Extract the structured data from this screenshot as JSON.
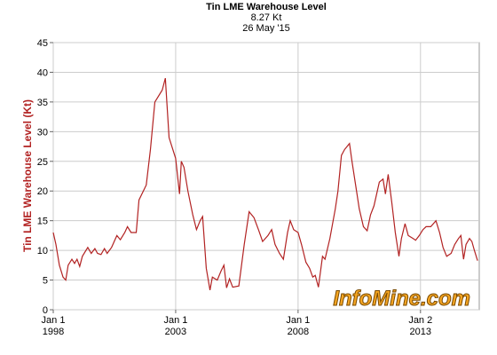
{
  "chart_data": {
    "type": "line",
    "title": "Tin LME Warehouse Level",
    "subtitle": "8.27 Kt",
    "date_label": "26 May '15",
    "y_label": "Tin LME Warehouse Level (Kt)",
    "watermark": "InfoMine.com",
    "xlim": [
      1998,
      2015.4
    ],
    "xticks": [
      {
        "value": 1998,
        "label": "Jan 1\n1998"
      },
      {
        "value": 2003,
        "label": "Jan 1\n2003"
      },
      {
        "value": 2008,
        "label": "Jan 1\n2008"
      },
      {
        "value": 2013,
        "label": "Jan 2\n2013"
      }
    ],
    "ylim": [
      0,
      45
    ],
    "yticks": [
      0,
      5,
      10,
      15,
      20,
      25,
      30,
      35,
      40,
      45
    ],
    "grid": true,
    "series": [
      {
        "name": "Tin LME Warehouse Level",
        "color": "#b22222",
        "x": [
          1998.0,
          1998.11,
          1998.25,
          1998.4,
          1998.51,
          1998.61,
          1998.76,
          1998.87,
          1998.97,
          1999.08,
          1999.19,
          1999.41,
          1999.55,
          1999.7,
          1999.81,
          1999.95,
          2000.09,
          2000.2,
          2000.38,
          2000.6,
          2000.74,
          2000.92,
          2001.03,
          2001.18,
          2001.39,
          2001.5,
          2001.8,
          2001.97,
          2002.15,
          2002.45,
          2002.58,
          2002.73,
          2003.0,
          2003.16,
          2003.23,
          2003.34,
          2003.5,
          2003.7,
          2003.85,
          2004.0,
          2004.1,
          2004.25,
          2004.4,
          2004.5,
          2004.7,
          2004.85,
          2004.97,
          2005.08,
          2005.2,
          2005.33,
          2005.58,
          2005.8,
          2006.0,
          2006.2,
          2006.38,
          2006.55,
          2006.77,
          2006.92,
          2007.06,
          2007.24,
          2007.4,
          2007.57,
          2007.68,
          2007.82,
          2008.0,
          2008.14,
          2008.32,
          2008.47,
          2008.6,
          2008.7,
          2008.83,
          2009.0,
          2009.1,
          2009.3,
          2009.52,
          2009.63,
          2009.77,
          2009.9,
          2010.1,
          2010.2,
          2010.35,
          2010.5,
          2010.67,
          2010.82,
          2010.96,
          2011.1,
          2011.32,
          2011.47,
          2011.57,
          2011.68,
          2011.83,
          2011.97,
          2012.12,
          2012.22,
          2012.37,
          2012.5,
          2012.7,
          2012.8,
          2012.95,
          2013.1,
          2013.23,
          2013.42,
          2013.63,
          2013.78,
          2013.92,
          2014.07,
          2014.25,
          2014.4,
          2014.55,
          2014.65,
          2014.76,
          2014.86,
          2015.0,
          2015.1,
          2015.2,
          2015.33
        ],
        "values": [
          13,
          11,
          7.5,
          5.5,
          5,
          7.5,
          8.5,
          7.8,
          8.5,
          7.3,
          9,
          10.5,
          9.5,
          10.3,
          9.5,
          9.3,
          10.3,
          9.5,
          10.5,
          12.5,
          11.8,
          13,
          14,
          13,
          13,
          18.5,
          21,
          27,
          35,
          37,
          39,
          29,
          25.5,
          19.5,
          25,
          24,
          20,
          16,
          13.5,
          15,
          15.7,
          7,
          3.3,
          5.5,
          5,
          6.5,
          7.5,
          3.7,
          5.2,
          3.8,
          4,
          11,
          16.5,
          15.5,
          13.5,
          11.5,
          12.5,
          13.5,
          11,
          9.5,
          8.5,
          13,
          15,
          13.5,
          13,
          11,
          8,
          7,
          5.5,
          5.8,
          3.8,
          9,
          8.5,
          12,
          17,
          20,
          26,
          27,
          28,
          25,
          21,
          17,
          14,
          13.3,
          16,
          17.5,
          21.5,
          22,
          19.5,
          22.8,
          18,
          13,
          9,
          12,
          14.5,
          12.5,
          12,
          11.7,
          12.5,
          13.5,
          14,
          14,
          15,
          13,
          10.5,
          9,
          9.5,
          11,
          12,
          12.5,
          8.5,
          11,
          12,
          11.5,
          10,
          8.27
        ]
      }
    ]
  }
}
